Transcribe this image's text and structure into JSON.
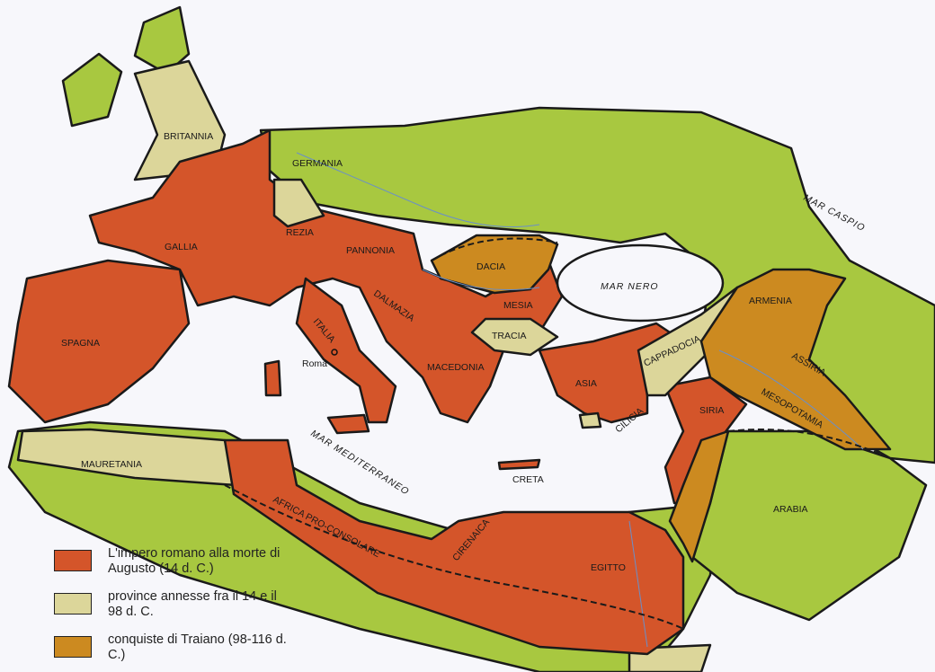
{
  "colors": {
    "augustus": "#d4552a",
    "annexed": "#dcd69a",
    "trajan": "#cc8a20",
    "outside": "#a8c840",
    "sea": "#f7f7fb",
    "rivers": "#6a8fc8"
  },
  "labels": {
    "britannia": "BRITANNIA",
    "germania": "GERMANIA",
    "gallia": "GALLIA",
    "rezia": "REZIA",
    "pannonia": "PANNONIA",
    "dacia": "DACIA",
    "spagna": "SPAGNA",
    "italia": "ITALIA",
    "roma": "Roma",
    "dalmazia": "DALMAZIA",
    "mesia": "MESIA",
    "tracia": "TRACIA",
    "macedonia": "MACEDONIA",
    "asia": "ASIA",
    "cappadocia": "CAPPADOCIA",
    "armenia": "ARMENIA",
    "assiria": "ASSIRIA",
    "mesopotamia": "MESOPOTAMIA",
    "siria": "SIRIA",
    "cilicia": "CILICIA",
    "creta": "CRETA",
    "mauretania": "MAURETANIA",
    "africa": "AFRICA PRO-CONSOLARE",
    "cirenaica": "CIRENAICA",
    "egitto": "EGITTO",
    "arabia": "ARABIA"
  },
  "seas": {
    "mar_nero": "MAR NERO",
    "mar_caspio": "MAR CASPIO",
    "mar_mediterraneo": "MAR MEDITERRANEO"
  },
  "legend": [
    {
      "key": "augustus",
      "text": "L'impero romano alla morte di Augusto (14 d. C.)"
    },
    {
      "key": "annexed",
      "text": "province annesse fra il 14 e il 98 d. C."
    },
    {
      "key": "trajan",
      "text": "conquiste di Traiano (98-116 d. C.)"
    }
  ]
}
